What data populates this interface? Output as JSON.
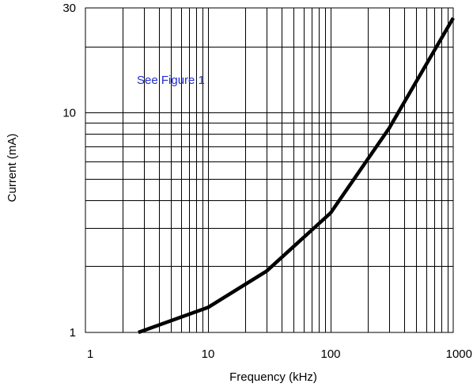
{
  "chart_data": {
    "type": "line",
    "title": "",
    "xlabel": "Frequency (kHz)",
    "ylabel": "Current (mA)",
    "x_scale": "log",
    "y_scale": "log",
    "xlim": [
      1,
      1000
    ],
    "ylim": [
      1,
      30
    ],
    "grid": true,
    "x_ticks": [
      1,
      10,
      100,
      1000
    ],
    "x_tick_labels": [
      "1",
      "10",
      "100",
      "1000"
    ],
    "y_ticks": [
      1,
      10,
      30
    ],
    "y_tick_labels": [
      "1",
      "10",
      "30"
    ],
    "annotation": {
      "text": "See Figure 1",
      "color": "#1f2ccf"
    },
    "series": [
      {
        "color": "#000000",
        "x": [
          2.7,
          10,
          30,
          100,
          300,
          1000
        ],
        "y": [
          1.0,
          1.3,
          1.9,
          3.5,
          8.5,
          27
        ]
      }
    ]
  }
}
